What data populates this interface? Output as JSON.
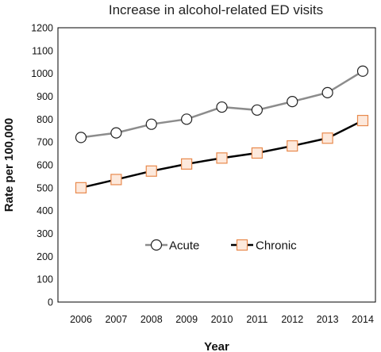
{
  "chart_data": {
    "type": "line",
    "title": "Increase in alcohol-related ED visits",
    "xlabel": "Year",
    "ylabel": "Rate per 100,000",
    "x": [
      "2006",
      "2007",
      "2008",
      "2009",
      "2010",
      "2011",
      "2012",
      "2013",
      "2014"
    ],
    "ylim": [
      0,
      1200
    ],
    "yticks": [
      "0",
      "100",
      "200",
      "300",
      "400",
      "500",
      "600",
      "700",
      "800",
      "900",
      "1000",
      "1100",
      "1200"
    ],
    "grid": false,
    "legend_position": "lower-center-inside",
    "series": [
      {
        "name": "Acute",
        "values": [
          720,
          740,
          778,
          800,
          853,
          840,
          877,
          916,
          1010
        ],
        "line_color": "#8c8c8c",
        "marker": "circle",
        "marker_edge": "#222222",
        "marker_fill": "#ffffff"
      },
      {
        "name": "Chronic",
        "values": [
          500,
          536,
          573,
          604,
          630,
          652,
          683,
          717,
          794
        ],
        "line_color": "#000000",
        "marker": "square",
        "marker_edge": "#e8894c",
        "marker_fill": "#fde9dc"
      }
    ]
  }
}
